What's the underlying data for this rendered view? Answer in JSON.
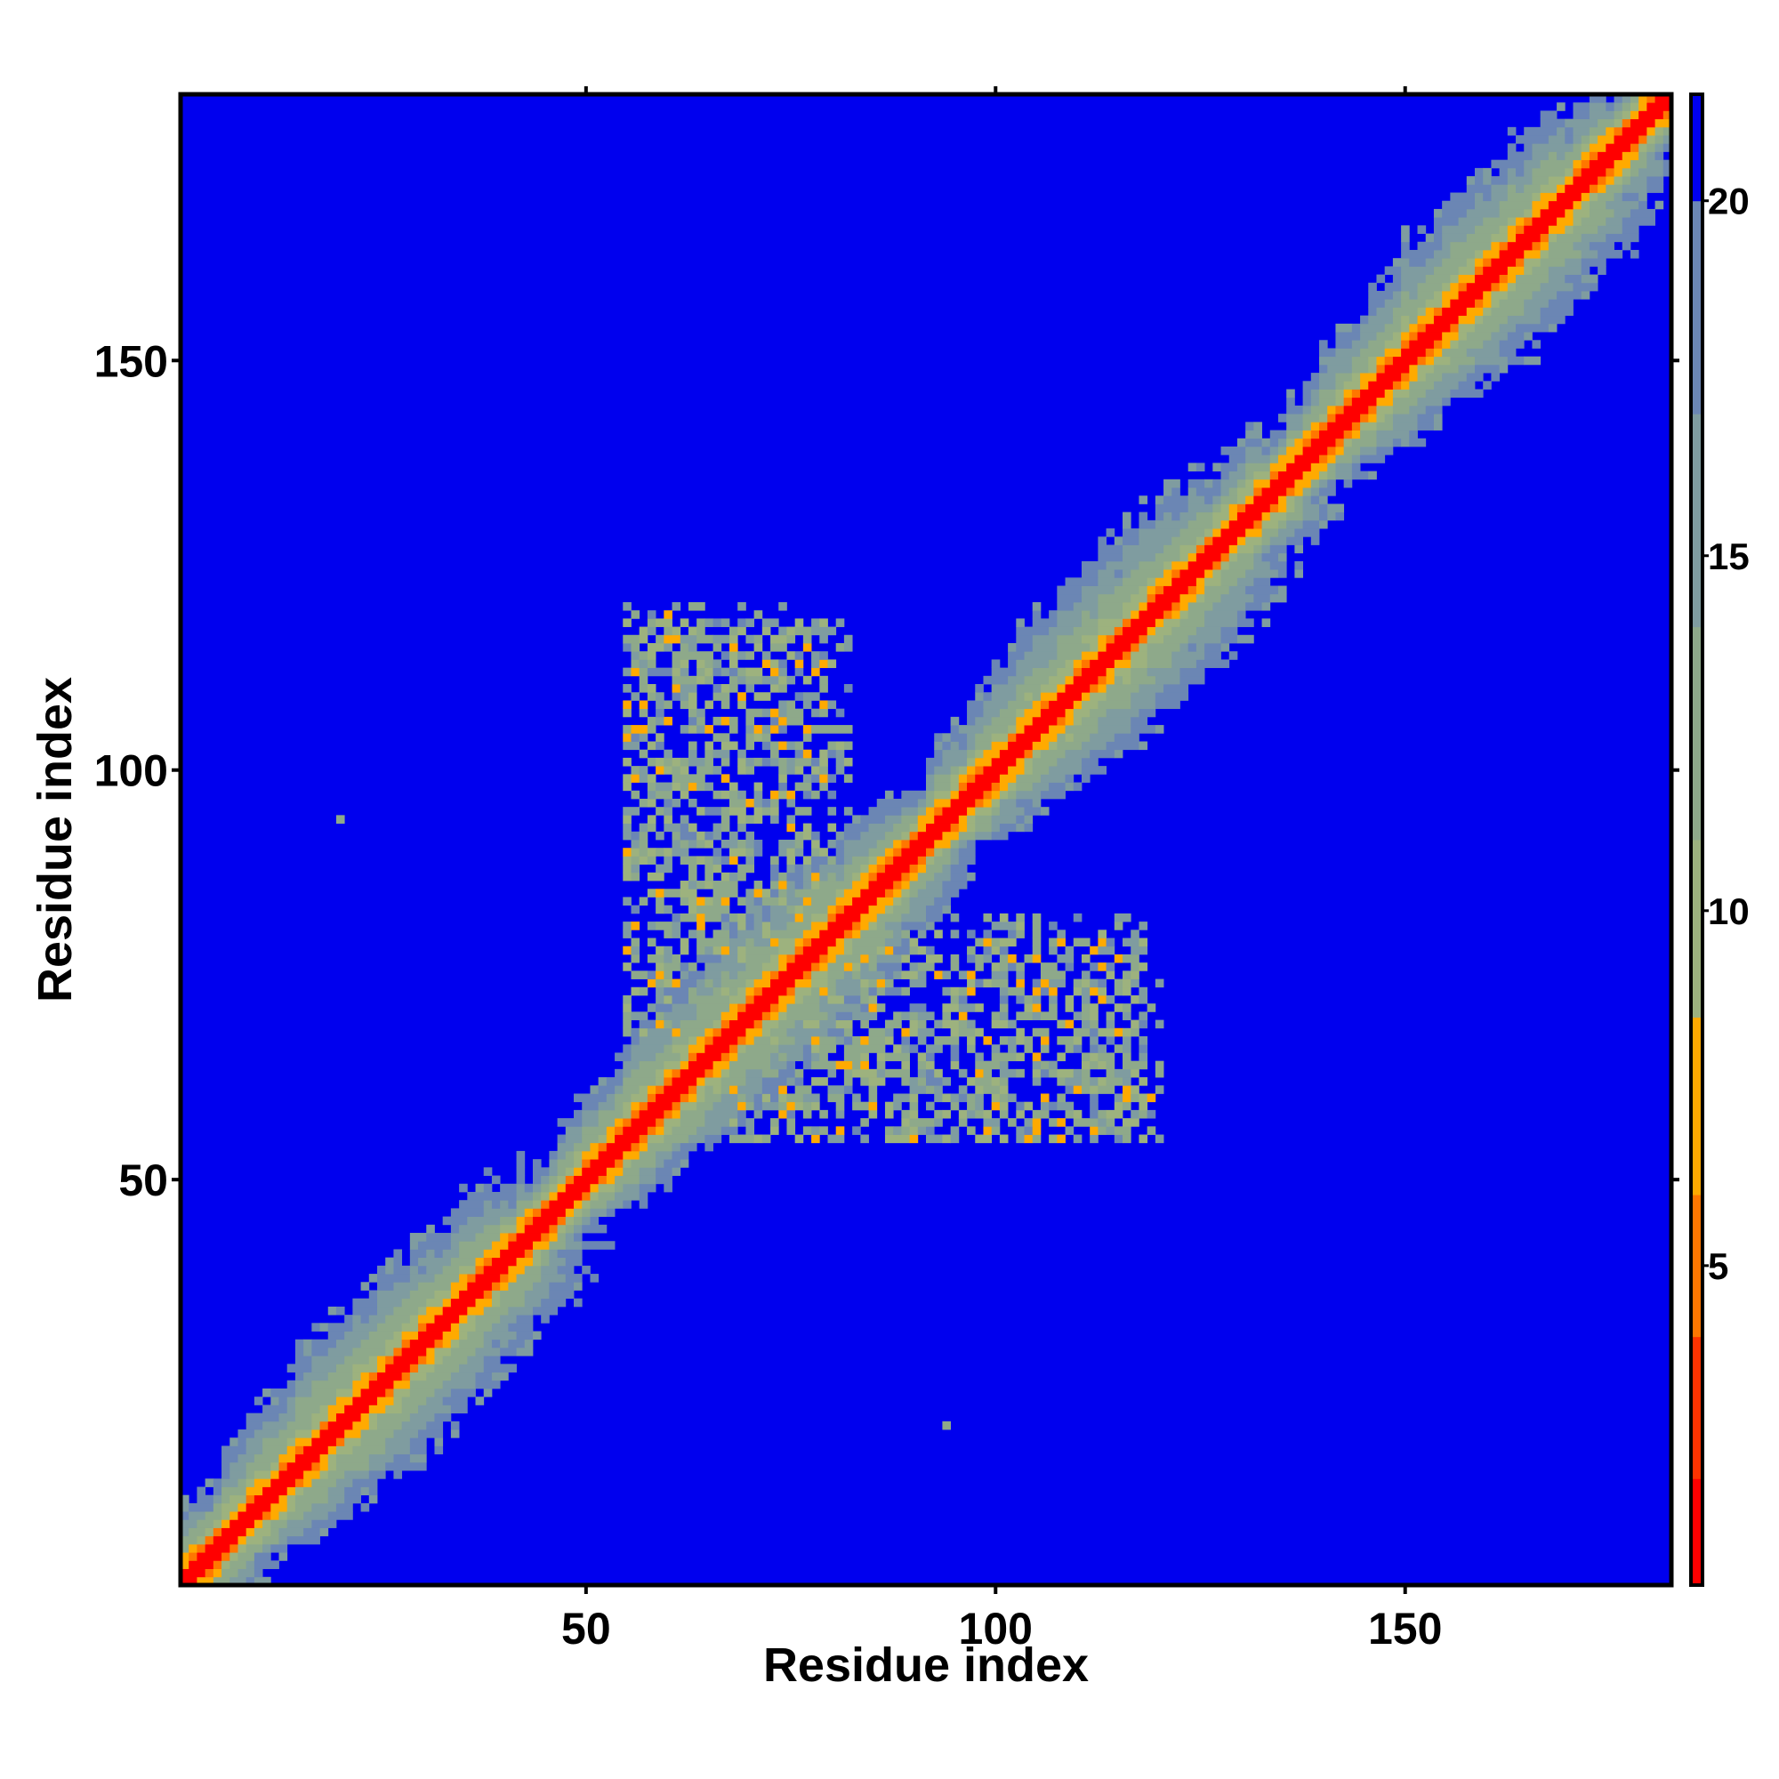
{
  "chart_data": {
    "type": "heatmap",
    "title": "",
    "xlabel": "Residue index",
    "ylabel": "Residue index",
    "n_residues": 182,
    "xlim": [
      1,
      182
    ],
    "ylim": [
      1,
      182
    ],
    "x_ticks": [
      50,
      100,
      150
    ],
    "y_ticks": [
      50,
      100,
      150
    ],
    "colorbar": {
      "range": [
        0.5,
        21.5
      ],
      "ticks": [
        5,
        10,
        15,
        20
      ],
      "segments": [
        {
          "from": 0.5,
          "to": 2.0,
          "color": "#ff0000"
        },
        {
          "from": 2.0,
          "to": 4.0,
          "color": "#ff3300"
        },
        {
          "from": 4.0,
          "to": 6.0,
          "color": "#ff7700"
        },
        {
          "from": 6.0,
          "to": 8.5,
          "color": "#ffaa00"
        },
        {
          "from": 8.5,
          "to": 11.0,
          "color": "#9db27e"
        },
        {
          "from": 11.0,
          "to": 14.0,
          "color": "#8ea98a"
        },
        {
          "from": 14.0,
          "to": 17.0,
          "color": "#7f9ca0"
        },
        {
          "from": 17.0,
          "to": 20.0,
          "color": "#6b86b4"
        },
        {
          "from": 20.0,
          "to": 21.5,
          "color": "#0000ee"
        }
      ]
    },
    "background_color": "#0000ee",
    "description_values": {
      "diagonal_band": "distance < 4 along |i-j| <= 1",
      "near_diagonal": "distance 5-8 for |i-j| 2-3",
      "halo": "distance 9-19 up to |i-j| about 12"
    },
    "contact_regions": [
      {
        "x": [
          55,
          80
        ],
        "y": [
          78,
          120
        ]
      },
      {
        "x": [
          68,
          118
        ],
        "y": [
          55,
          82
        ]
      }
    ],
    "isolated_points": [
      {
        "x": 20,
        "y": 94
      },
      {
        "x": 94,
        "y": 20
      }
    ]
  }
}
